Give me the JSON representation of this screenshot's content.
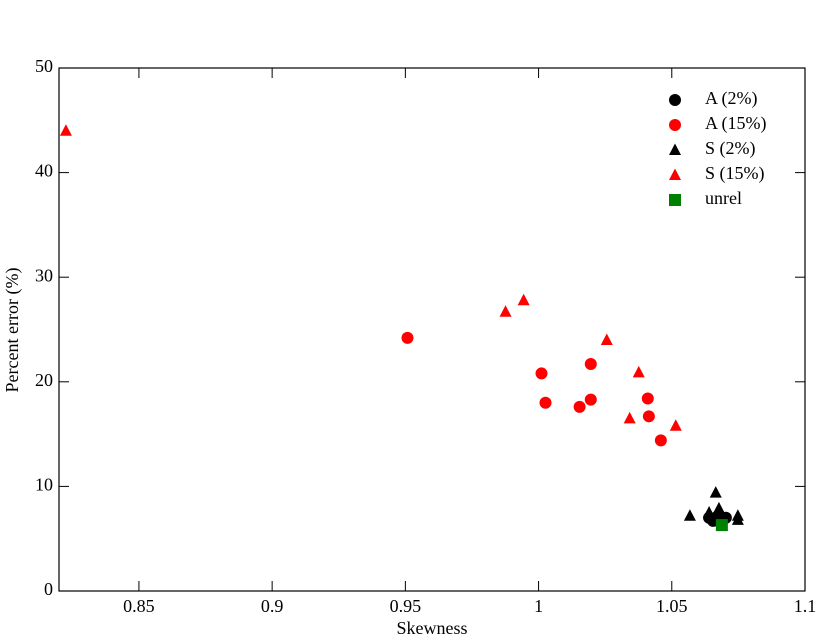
{
  "chart_data": {
    "type": "scatter",
    "xlabel": "Skewness",
    "ylabel": "Percent error (%)",
    "xlim": [
      0.82,
      1.1
    ],
    "ylim": [
      0,
      50
    ],
    "xticks": [
      0.85,
      0.9,
      0.95,
      1,
      1.05,
      1.1
    ],
    "yticks": [
      0,
      10,
      20,
      30,
      40,
      50
    ],
    "legend": "upper right",
    "series": [
      {
        "name": "A (2%)",
        "color": "#000000",
        "marker": "circle",
        "x": [
          1.064,
          1.0655,
          1.067,
          1.0688,
          1.0703
        ],
        "values": [
          7.0,
          6.7,
          7.1,
          6.9,
          7.0
        ]
      },
      {
        "name": "A (15%)",
        "color": "#ff0000",
        "marker": "circle",
        "x": [
          0.9508,
          1.0011,
          1.0026,
          1.0196,
          1.0196,
          1.0154,
          1.041,
          1.0414,
          1.0459
        ],
        "values": [
          24.2,
          20.8,
          18.0,
          21.7,
          18.3,
          17.6,
          18.4,
          16.7,
          14.4
        ]
      },
      {
        "name": "S (2%)",
        "color": "#000000",
        "marker": "triangle",
        "x": [
          1.0568,
          1.0665,
          1.0677,
          1.0748,
          1.0748,
          1.064
        ],
        "values": [
          7.2,
          9.4,
          7.9,
          7.2,
          6.8,
          7.5
        ]
      },
      {
        "name": "S (15%)",
        "color": "#ff0000",
        "marker": "triangle",
        "x": [
          0.8226,
          0.9876,
          0.9944,
          1.0256,
          1.0376,
          1.0342,
          1.0515
        ],
        "values": [
          44.0,
          26.7,
          27.8,
          24.0,
          20.9,
          16.5,
          15.8
        ]
      },
      {
        "name": "unrel",
        "color": "#008000",
        "marker": "square",
        "x": [
          1.0688
        ],
        "values": [
          6.3
        ]
      }
    ]
  }
}
